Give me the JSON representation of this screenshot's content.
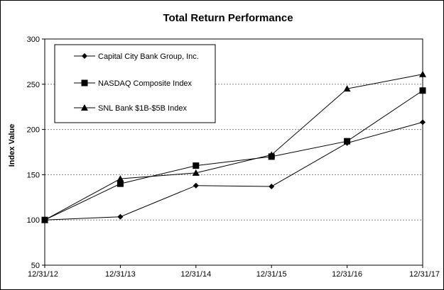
{
  "chart_data": {
    "type": "line",
    "title": "Total Return Performance",
    "xlabel": "",
    "ylabel": "Index Value",
    "categories": [
      "12/31/12",
      "12/31/13",
      "12/31/14",
      "12/31/15",
      "12/31/16",
      "12/31/17"
    ],
    "ylim": [
      50,
      300
    ],
    "yticks": [
      "50",
      "100",
      "150",
      "200",
      "250",
      "300"
    ],
    "grid": true,
    "legend_position": "top-left",
    "series": [
      {
        "name": "Capital City Bank Group, Inc.",
        "marker": "diamond",
        "values": [
          100,
          103.5,
          138,
          137,
          185,
          208
        ]
      },
      {
        "name": "NASDAQ Composite Index",
        "marker": "square",
        "values": [
          100,
          140,
          160,
          170,
          187,
          243
        ]
      },
      {
        "name": "SNL Bank $1B-$5B Index",
        "marker": "triangle",
        "values": [
          100,
          145.5,
          152,
          172,
          245,
          261
        ]
      }
    ],
    "line_color": "#000000",
    "grid_color": "#808080"
  }
}
